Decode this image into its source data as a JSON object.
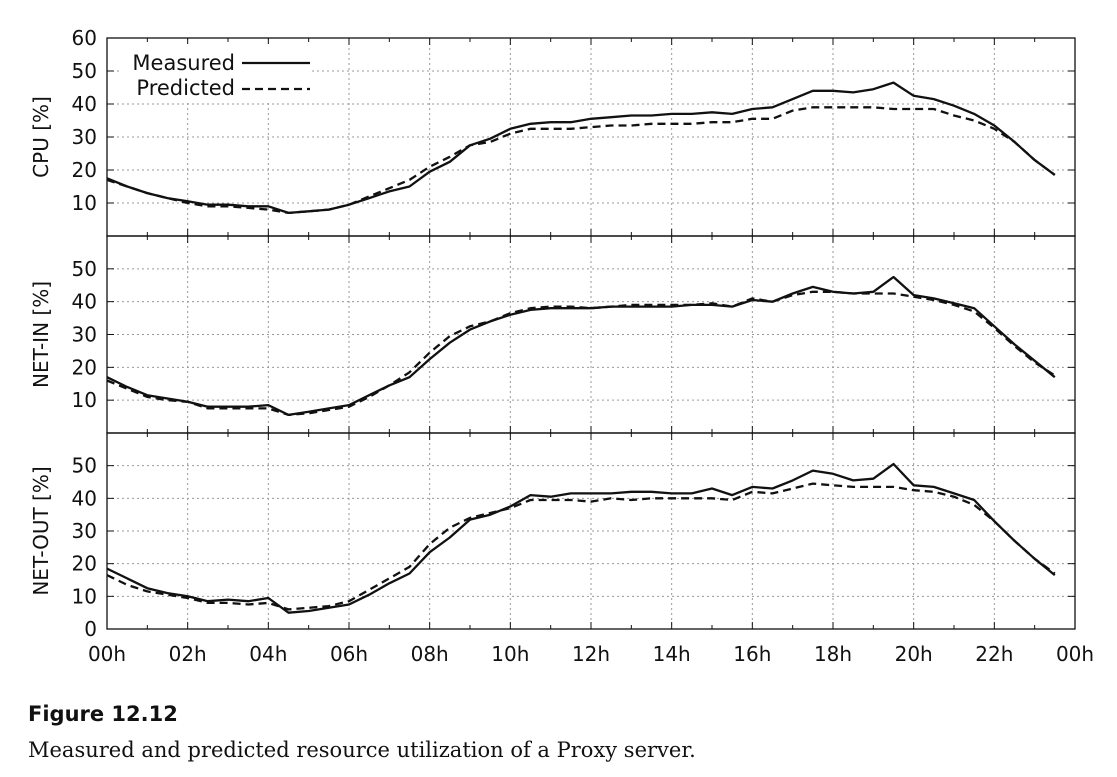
{
  "figure": {
    "label": "Figure 12.12",
    "caption": "Measured and predicted resource utilization of a Proxy server."
  },
  "legend": {
    "measured": "Measured",
    "predicted": "Predicted"
  },
  "colors": {
    "line": "#111111",
    "grid": "#999999"
  },
  "chart_data": [
    {
      "type": "line",
      "ylabel": "CPU [%]",
      "ylim": [
        0,
        60
      ],
      "yticks": [
        "10",
        "20",
        "30",
        "40",
        "50",
        "60"
      ],
      "grid": true,
      "legend_position": "top-left",
      "x": [
        0,
        0.5,
        1,
        1.5,
        2,
        2.5,
        3,
        3.5,
        4,
        4.5,
        5,
        5.5,
        6,
        6.5,
        7,
        7.5,
        8,
        8.5,
        9,
        9.5,
        10,
        10.5,
        11,
        11.5,
        12,
        12.5,
        13,
        13.5,
        14,
        14.5,
        15,
        15.5,
        16,
        16.5,
        17,
        17.5,
        18,
        18.5,
        19,
        19.5,
        20,
        20.5,
        21,
        21.5,
        22,
        22.5,
        23,
        23.5
      ],
      "series": [
        {
          "name": "Measured",
          "style": "solid",
          "values": [
            17.5,
            15,
            13,
            11.5,
            10.5,
            9.5,
            9.5,
            9,
            9,
            7,
            7.5,
            8,
            9.5,
            11.5,
            13.5,
            15,
            19.5,
            22.5,
            27.5,
            29.5,
            32.5,
            34,
            34.5,
            34.5,
            35.5,
            36,
            36.5,
            36.5,
            37,
            37,
            37.5,
            37,
            38.5,
            39,
            41.5,
            44,
            44,
            43.5,
            44.5,
            46.5,
            42.5,
            41.5,
            39.5,
            37,
            33.5,
            28.5,
            23,
            18.5
          ]
        },
        {
          "name": "Predicted",
          "style": "dashed",
          "values": [
            17,
            15,
            13,
            11.5,
            10,
            9,
            9,
            8.5,
            8,
            7,
            7.5,
            8,
            9.5,
            12,
            14.5,
            17,
            21,
            24,
            27.5,
            28.5,
            31,
            32.5,
            32.5,
            32.5,
            33,
            33.5,
            33.5,
            34,
            34,
            34,
            34.5,
            34.5,
            35.5,
            35.5,
            38,
            39,
            39,
            39,
            39,
            38.5,
            38.5,
            38.5,
            36.5,
            35,
            32.5,
            28.5,
            23,
            18.5
          ]
        }
      ]
    },
    {
      "type": "line",
      "ylabel": "NET-IN [%]",
      "ylim": [
        0,
        60
      ],
      "yticks": [
        "10",
        "20",
        "30",
        "40",
        "50"
      ],
      "grid": true,
      "x": [
        0,
        0.5,
        1,
        1.5,
        2,
        2.5,
        3,
        3.5,
        4,
        4.5,
        5,
        5.5,
        6,
        6.5,
        7,
        7.5,
        8,
        8.5,
        9,
        9.5,
        10,
        10.5,
        11,
        11.5,
        12,
        12.5,
        13,
        13.5,
        14,
        14.5,
        15,
        15.5,
        16,
        16.5,
        17,
        17.5,
        18,
        18.5,
        19,
        19.5,
        20,
        20.5,
        21,
        21.5,
        22,
        22.5,
        23,
        23.5
      ],
      "series": [
        {
          "name": "Measured",
          "style": "solid",
          "values": [
            17,
            14,
            11.5,
            10.5,
            9.5,
            8,
            8,
            8,
            8.5,
            5.5,
            6.5,
            7.5,
            8.5,
            11.5,
            14.5,
            17,
            22.5,
            27.5,
            31.5,
            34,
            36,
            37.5,
            38,
            38,
            38,
            38.5,
            38.5,
            38.5,
            38.5,
            39,
            39,
            38.5,
            40.5,
            40,
            42.5,
            44.5,
            43,
            42.5,
            43,
            47.5,
            42,
            41,
            39.5,
            38,
            32.5,
            27,
            22,
            17
          ]
        },
        {
          "name": "Predicted",
          "style": "dashed",
          "values": [
            16,
            13.5,
            11,
            10,
            9.5,
            7.5,
            7.5,
            7.5,
            7.5,
            5.5,
            6,
            7,
            8,
            11,
            14.5,
            18.5,
            24.5,
            29.5,
            32.5,
            34,
            36.5,
            38,
            38.5,
            38.5,
            38,
            38.5,
            39,
            39,
            39,
            39,
            39.5,
            38.5,
            41,
            40,
            42,
            43,
            43,
            42.5,
            42.5,
            42.5,
            41.5,
            40.5,
            39,
            37,
            32,
            26.5,
            21.5,
            17.5
          ]
        }
      ]
    },
    {
      "type": "line",
      "ylabel": "NET-OUT [%]",
      "ylim": [
        0,
        60
      ],
      "yticks": [
        "0",
        "10",
        "20",
        "30",
        "40",
        "50"
      ],
      "xticks": [
        "00h",
        "02h",
        "04h",
        "06h",
        "08h",
        "10h",
        "12h",
        "14h",
        "16h",
        "18h",
        "20h",
        "22h",
        "00h"
      ],
      "grid": true,
      "x": [
        0,
        0.5,
        1,
        1.5,
        2,
        2.5,
        3,
        3.5,
        4,
        4.5,
        5,
        5.5,
        6,
        6.5,
        7,
        7.5,
        8,
        8.5,
        9,
        9.5,
        10,
        10.5,
        11,
        11.5,
        12,
        12.5,
        13,
        13.5,
        14,
        14.5,
        15,
        15.5,
        16,
        16.5,
        17,
        17.5,
        18,
        18.5,
        19,
        19.5,
        20,
        20.5,
        21,
        21.5,
        22,
        22.5,
        23,
        23.5
      ],
      "series": [
        {
          "name": "Measured",
          "style": "solid",
          "values": [
            18.5,
            15.5,
            12.5,
            11,
            10,
            8.5,
            9,
            8.5,
            9.5,
            5,
            5.5,
            6.5,
            7.5,
            10.5,
            14,
            17,
            23.5,
            28,
            33.5,
            35,
            37.5,
            41,
            40.5,
            41.5,
            41.5,
            41.5,
            42,
            42,
            41.5,
            41.5,
            43,
            41,
            43.5,
            43,
            45.5,
            48.5,
            47.5,
            45.5,
            46,
            50.5,
            44,
            43.5,
            41.5,
            39.5,
            33,
            27,
            21.5,
            16.5
          ]
        },
        {
          "name": "Predicted",
          "style": "dashed",
          "values": [
            16.5,
            13.5,
            11.5,
            10.5,
            9.5,
            8,
            8,
            7.5,
            8,
            6,
            6.5,
            7,
            8.5,
            12,
            15.5,
            19,
            26,
            31,
            34,
            35.5,
            37,
            39.5,
            39.5,
            39.5,
            39,
            40,
            39.5,
            40,
            40,
            40,
            40,
            39.5,
            42,
            41.5,
            43,
            44.5,
            44,
            43.5,
            43.5,
            43.5,
            42.5,
            42,
            40.5,
            38,
            33,
            27,
            21.5,
            17
          ]
        }
      ]
    }
  ]
}
